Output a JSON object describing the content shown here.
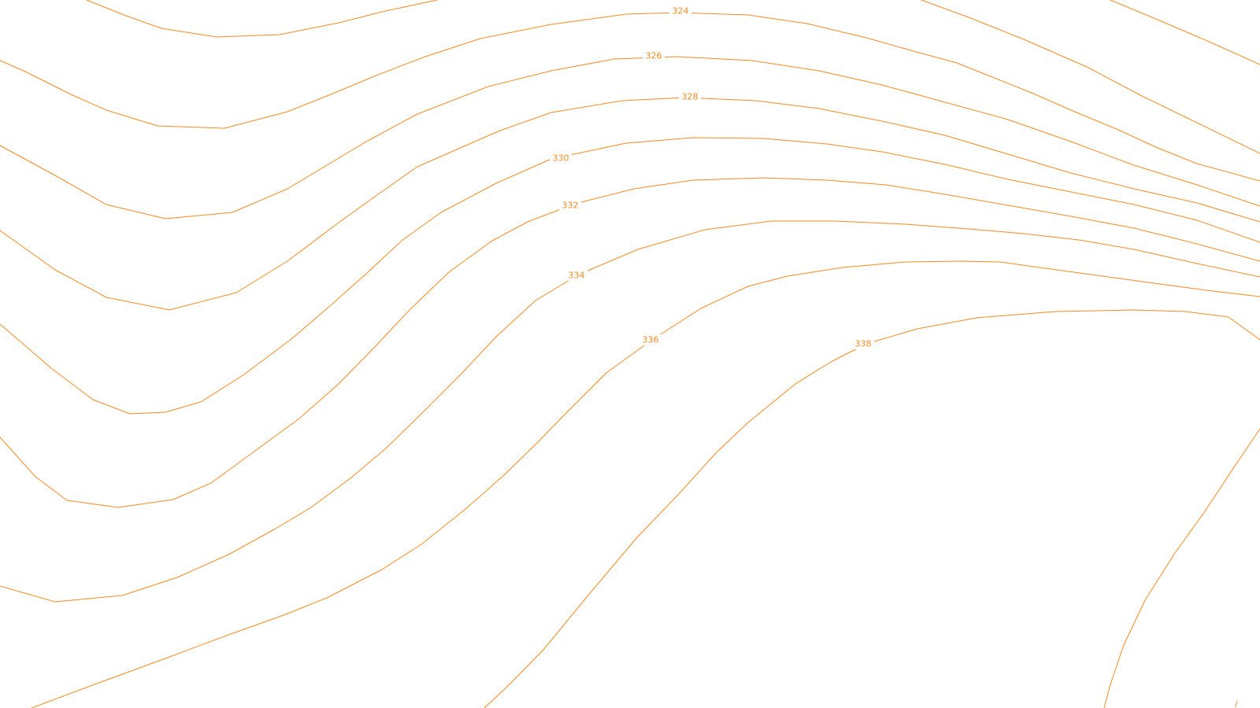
{
  "map": {
    "line_color": "#f28a22",
    "background_color": "#ffffff",
    "contour_labels": {
      "c324": "324",
      "c326": "326",
      "c328": "328",
      "c330": "330",
      "c332": "332",
      "c334": "334",
      "c336": "336",
      "c338": "338"
    },
    "corner_mark": "/"
  }
}
